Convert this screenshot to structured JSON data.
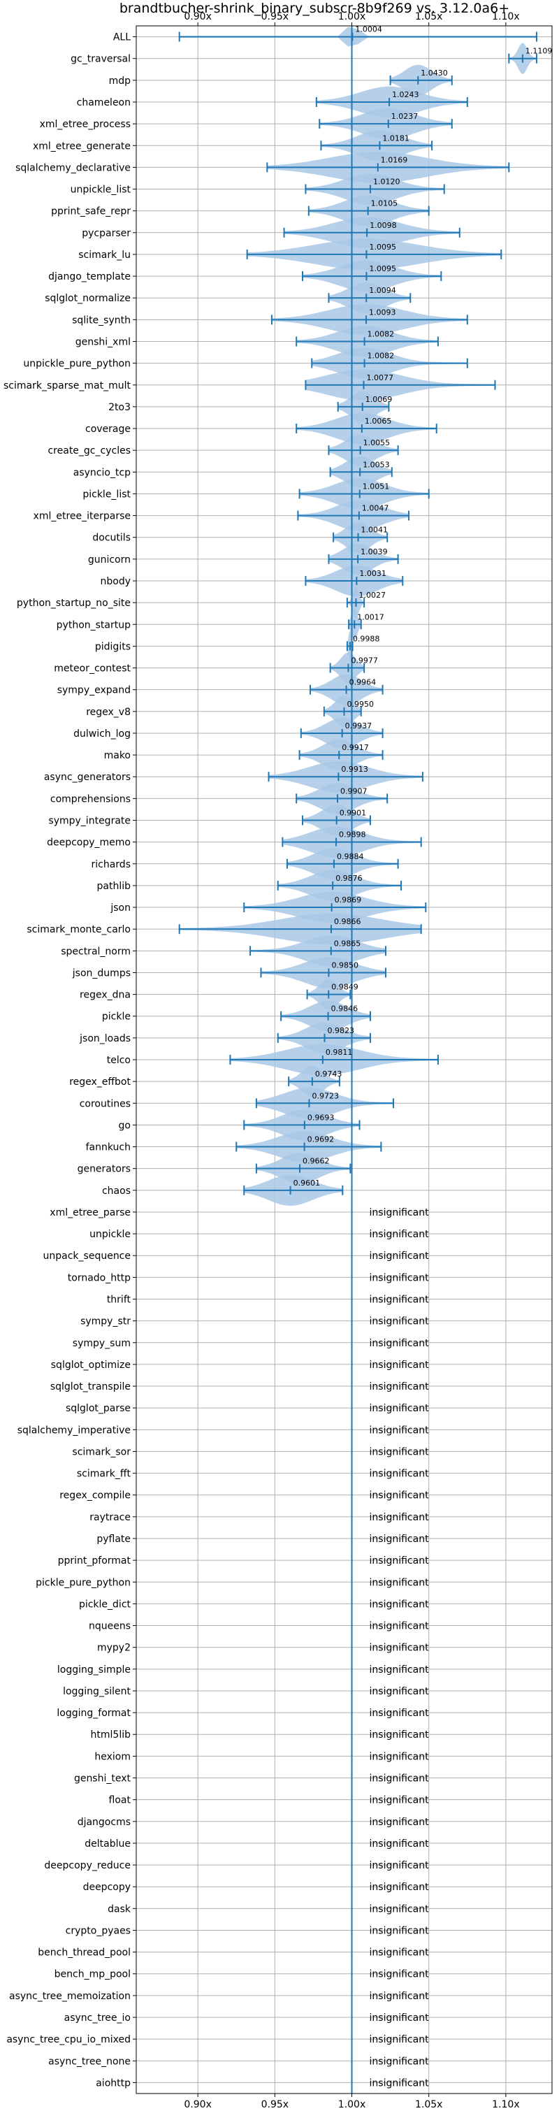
{
  "chart_data": {
    "type": "violin",
    "title": "brandtbucher-shrink_binary_subscr-8b9f269 vs. 3.12.0a6+",
    "xlim": [
      0.86,
      1.13
    ],
    "x_ticks": [
      {
        "value": 0.9,
        "label": "0.90x"
      },
      {
        "value": 0.95,
        "label": "0.95x"
      },
      {
        "value": 1.0,
        "label": "1.00x"
      },
      {
        "value": 1.05,
        "label": "1.05x"
      },
      {
        "value": 1.1,
        "label": "1.10x"
      }
    ],
    "reference_line": 1.0,
    "grid": true,
    "colors": {
      "violin": "#a9c8e6",
      "line": "#1f77b4",
      "grid": "#b0b0b0"
    },
    "benchmarks": [
      {
        "name": "ALL",
        "mean": 1.0004,
        "label": "1.0004",
        "min": 0.888,
        "max": 1.12,
        "w": 0.006
      },
      {
        "name": "gc_traversal",
        "mean": 1.1109,
        "label": "1.1109",
        "min": 1.102,
        "max": 1.12,
        "w": 0.006
      },
      {
        "name": "mdp",
        "mean": 1.043,
        "label": "1.0430",
        "min": 1.025,
        "max": 1.065,
        "w": 0.018
      },
      {
        "name": "chameleon",
        "mean": 1.0243,
        "label": "1.0243",
        "min": 0.977,
        "max": 1.075,
        "w": 0.04
      },
      {
        "name": "xml_etree_process",
        "mean": 1.0237,
        "label": "1.0237",
        "min": 0.979,
        "max": 1.065,
        "w": 0.035
      },
      {
        "name": "xml_etree_generate",
        "mean": 1.0181,
        "label": "1.0181",
        "min": 0.98,
        "max": 1.052,
        "w": 0.03
      },
      {
        "name": "sqlalchemy_declarative",
        "mean": 1.0169,
        "label": "1.0169",
        "min": 0.945,
        "max": 1.102,
        "w": 0.065
      },
      {
        "name": "unpickle_list",
        "mean": 1.012,
        "label": "1.0120",
        "min": 0.97,
        "max": 1.06,
        "w": 0.035
      },
      {
        "name": "pprint_safe_repr",
        "mean": 1.0105,
        "label": "1.0105",
        "min": 0.972,
        "max": 1.05,
        "w": 0.032
      },
      {
        "name": "pycparser",
        "mean": 1.0098,
        "label": "1.0098",
        "min": 0.956,
        "max": 1.07,
        "w": 0.045
      },
      {
        "name": "scimark_lu",
        "mean": 1.0095,
        "label": "1.0095",
        "min": 0.932,
        "max": 1.097,
        "w": 0.07
      },
      {
        "name": "django_template",
        "mean": 1.0095,
        "label": "1.0095",
        "min": 0.968,
        "max": 1.058,
        "w": 0.036
      },
      {
        "name": "sqlglot_normalize",
        "mean": 1.0094,
        "label": "1.0094",
        "min": 0.985,
        "max": 1.038,
        "w": 0.024
      },
      {
        "name": "sqlite_synth",
        "mean": 1.0093,
        "label": "1.0093",
        "min": 0.948,
        "max": 1.075,
        "w": 0.05
      },
      {
        "name": "genshi_xml",
        "mean": 1.0082,
        "label": "1.0082",
        "min": 0.964,
        "max": 1.056,
        "w": 0.036
      },
      {
        "name": "unpickle_pure_python",
        "mean": 1.0082,
        "label": "1.0082",
        "min": 0.974,
        "max": 1.075,
        "w": 0.035
      },
      {
        "name": "scimark_sparse_mat_mult",
        "mean": 1.0077,
        "label": "1.0077",
        "min": 0.97,
        "max": 1.093,
        "w": 0.05
      },
      {
        "name": "2to3",
        "mean": 1.0069,
        "label": "1.0069",
        "min": 0.991,
        "max": 1.024,
        "w": 0.016
      },
      {
        "name": "coverage",
        "mean": 1.0065,
        "label": "1.0065",
        "min": 0.964,
        "max": 1.055,
        "w": 0.035
      },
      {
        "name": "create_gc_cycles",
        "mean": 1.0055,
        "label": "1.0055",
        "min": 0.985,
        "max": 1.03,
        "w": 0.02
      },
      {
        "name": "asyncio_tcp",
        "mean": 1.0053,
        "label": "1.0053",
        "min": 0.986,
        "max": 1.026,
        "w": 0.02
      },
      {
        "name": "pickle_list",
        "mean": 1.0051,
        "label": "1.0051",
        "min": 0.966,
        "max": 1.05,
        "w": 0.033
      },
      {
        "name": "xml_etree_iterparse",
        "mean": 1.0047,
        "label": "1.0047",
        "min": 0.965,
        "max": 1.037,
        "w": 0.03
      },
      {
        "name": "docutils",
        "mean": 1.0041,
        "label": "1.0041",
        "min": 0.988,
        "max": 1.023,
        "w": 0.016
      },
      {
        "name": "gunicorn",
        "mean": 1.0039,
        "label": "1.0039",
        "min": 0.985,
        "max": 1.03,
        "w": 0.02
      },
      {
        "name": "nbody",
        "mean": 1.0031,
        "label": "1.0031",
        "min": 0.97,
        "max": 1.033,
        "w": 0.028
      },
      {
        "name": "python_startup_no_site",
        "mean": 1.0027,
        "label": "1.0027",
        "min": 0.997,
        "max": 1.008,
        "w": 0.004
      },
      {
        "name": "python_startup",
        "mean": 1.0017,
        "label": "1.0017",
        "min": 0.998,
        "max": 1.006,
        "w": 0.004
      },
      {
        "name": "pidigits",
        "mean": 0.9988,
        "label": "0.9988",
        "min": 0.997,
        "max": 1.0005,
        "w": 0.002
      },
      {
        "name": "meteor_contest",
        "mean": 0.9977,
        "label": "0.9977",
        "min": 0.986,
        "max": 1.008,
        "w": 0.01
      },
      {
        "name": "sympy_expand",
        "mean": 0.9964,
        "label": "0.9964",
        "min": 0.973,
        "max": 1.02,
        "w": 0.02
      },
      {
        "name": "regex_v8",
        "mean": 0.995,
        "label": "0.9950",
        "min": 0.982,
        "max": 1.006,
        "w": 0.012
      },
      {
        "name": "dulwich_log",
        "mean": 0.9937,
        "label": "0.9937",
        "min": 0.967,
        "max": 1.02,
        "w": 0.022
      },
      {
        "name": "mako",
        "mean": 0.9917,
        "label": "0.9917",
        "min": 0.966,
        "max": 1.02,
        "w": 0.022
      },
      {
        "name": "async_generators",
        "mean": 0.9913,
        "label": "0.9913",
        "min": 0.946,
        "max": 1.046,
        "w": 0.04
      },
      {
        "name": "comprehensions",
        "mean": 0.9907,
        "label": "0.9907",
        "min": 0.964,
        "max": 1.023,
        "w": 0.024
      },
      {
        "name": "sympy_integrate",
        "mean": 0.9901,
        "label": "0.9901",
        "min": 0.968,
        "max": 1.012,
        "w": 0.02
      },
      {
        "name": "deepcopy_memo",
        "mean": 0.9898,
        "label": "0.9898",
        "min": 0.955,
        "max": 1.045,
        "w": 0.035
      },
      {
        "name": "richards",
        "mean": 0.9884,
        "label": "0.9884",
        "min": 0.958,
        "max": 1.03,
        "w": 0.028
      },
      {
        "name": "pathlib",
        "mean": 0.9876,
        "label": "0.9876",
        "min": 0.952,
        "max": 1.032,
        "w": 0.03
      },
      {
        "name": "json",
        "mean": 0.9869,
        "label": "0.9869",
        "min": 0.93,
        "max": 1.048,
        "w": 0.045
      },
      {
        "name": "scimark_monte_carlo",
        "mean": 0.9866,
        "label": "0.9866",
        "min": 0.888,
        "max": 1.045,
        "w": 0.07
      },
      {
        "name": "spectral_norm",
        "mean": 0.9865,
        "label": "0.9865",
        "min": 0.934,
        "max": 1.022,
        "w": 0.035
      },
      {
        "name": "json_dumps",
        "mean": 0.985,
        "label": "0.9850",
        "min": 0.941,
        "max": 1.022,
        "w": 0.034
      },
      {
        "name": "regex_dna",
        "mean": 0.9849,
        "label": "0.9849",
        "min": 0.971,
        "max": 0.999,
        "w": 0.012
      },
      {
        "name": "pickle",
        "mean": 0.9846,
        "label": "0.9846",
        "min": 0.954,
        "max": 1.012,
        "w": 0.025
      },
      {
        "name": "json_loads",
        "mean": 0.9823,
        "label": "0.9823",
        "min": 0.952,
        "max": 1.012,
        "w": 0.025
      },
      {
        "name": "telco",
        "mean": 0.9811,
        "label": "0.9811",
        "min": 0.921,
        "max": 1.056,
        "w": 0.05
      },
      {
        "name": "regex_effbot",
        "mean": 0.9743,
        "label": "0.9743",
        "min": 0.959,
        "max": 0.992,
        "w": 0.014
      },
      {
        "name": "coroutines",
        "mean": 0.9723,
        "label": "0.9723",
        "min": 0.938,
        "max": 1.027,
        "w": 0.035
      },
      {
        "name": "go",
        "mean": 0.9693,
        "label": "0.9693",
        "min": 0.93,
        "max": 1.005,
        "w": 0.03
      },
      {
        "name": "fannkuch",
        "mean": 0.9692,
        "label": "0.9692",
        "min": 0.925,
        "max": 1.019,
        "w": 0.036
      },
      {
        "name": "generators",
        "mean": 0.9662,
        "label": "0.9662",
        "min": 0.938,
        "max": 0.999,
        "w": 0.025
      },
      {
        "name": "chaos",
        "mean": 0.9601,
        "label": "0.9601",
        "min": 0.93,
        "max": 0.994,
        "w": 0.03
      },
      {
        "name": "xml_etree_parse",
        "insignificant": "insignificant"
      },
      {
        "name": "unpickle",
        "insignificant": "insignificant"
      },
      {
        "name": "unpack_sequence",
        "insignificant": "insignificant"
      },
      {
        "name": "tornado_http",
        "insignificant": "insignificant"
      },
      {
        "name": "thrift",
        "insignificant": "insignificant"
      },
      {
        "name": "sympy_str",
        "insignificant": "insignificant"
      },
      {
        "name": "sympy_sum",
        "insignificant": "insignificant"
      },
      {
        "name": "sqlglot_optimize",
        "insignificant": "insignificant"
      },
      {
        "name": "sqlglot_transpile",
        "insignificant": "insignificant"
      },
      {
        "name": "sqlglot_parse",
        "insignificant": "insignificant"
      },
      {
        "name": "sqlalchemy_imperative",
        "insignificant": "insignificant"
      },
      {
        "name": "scimark_sor",
        "insignificant": "insignificant"
      },
      {
        "name": "scimark_fft",
        "insignificant": "insignificant"
      },
      {
        "name": "regex_compile",
        "insignificant": "insignificant"
      },
      {
        "name": "raytrace",
        "insignificant": "insignificant"
      },
      {
        "name": "pyflate",
        "insignificant": "insignificant"
      },
      {
        "name": "pprint_pformat",
        "insignificant": "insignificant"
      },
      {
        "name": "pickle_pure_python",
        "insignificant": "insignificant"
      },
      {
        "name": "pickle_dict",
        "insignificant": "insignificant"
      },
      {
        "name": "nqueens",
        "insignificant": "insignificant"
      },
      {
        "name": "mypy2",
        "insignificant": "insignificant"
      },
      {
        "name": "logging_simple",
        "insignificant": "insignificant"
      },
      {
        "name": "logging_silent",
        "insignificant": "insignificant"
      },
      {
        "name": "logging_format",
        "insignificant": "insignificant"
      },
      {
        "name": "html5lib",
        "insignificant": "insignificant"
      },
      {
        "name": "hexiom",
        "insignificant": "insignificant"
      },
      {
        "name": "genshi_text",
        "insignificant": "insignificant"
      },
      {
        "name": "float",
        "insignificant": "insignificant"
      },
      {
        "name": "djangocms",
        "insignificant": "insignificant"
      },
      {
        "name": "deltablue",
        "insignificant": "insignificant"
      },
      {
        "name": "deepcopy_reduce",
        "insignificant": "insignificant"
      },
      {
        "name": "deepcopy",
        "insignificant": "insignificant"
      },
      {
        "name": "dask",
        "insignificant": "insignificant"
      },
      {
        "name": "crypto_pyaes",
        "insignificant": "insignificant"
      },
      {
        "name": "bench_thread_pool",
        "insignificant": "insignificant"
      },
      {
        "name": "bench_mp_pool",
        "insignificant": "insignificant"
      },
      {
        "name": "async_tree_memoization",
        "insignificant": "insignificant"
      },
      {
        "name": "async_tree_io",
        "insignificant": "insignificant"
      },
      {
        "name": "async_tree_cpu_io_mixed",
        "insignificant": "insignificant"
      },
      {
        "name": "async_tree_none",
        "insignificant": "insignificant"
      },
      {
        "name": "aiohttp",
        "insignificant": "insignificant"
      }
    ]
  }
}
